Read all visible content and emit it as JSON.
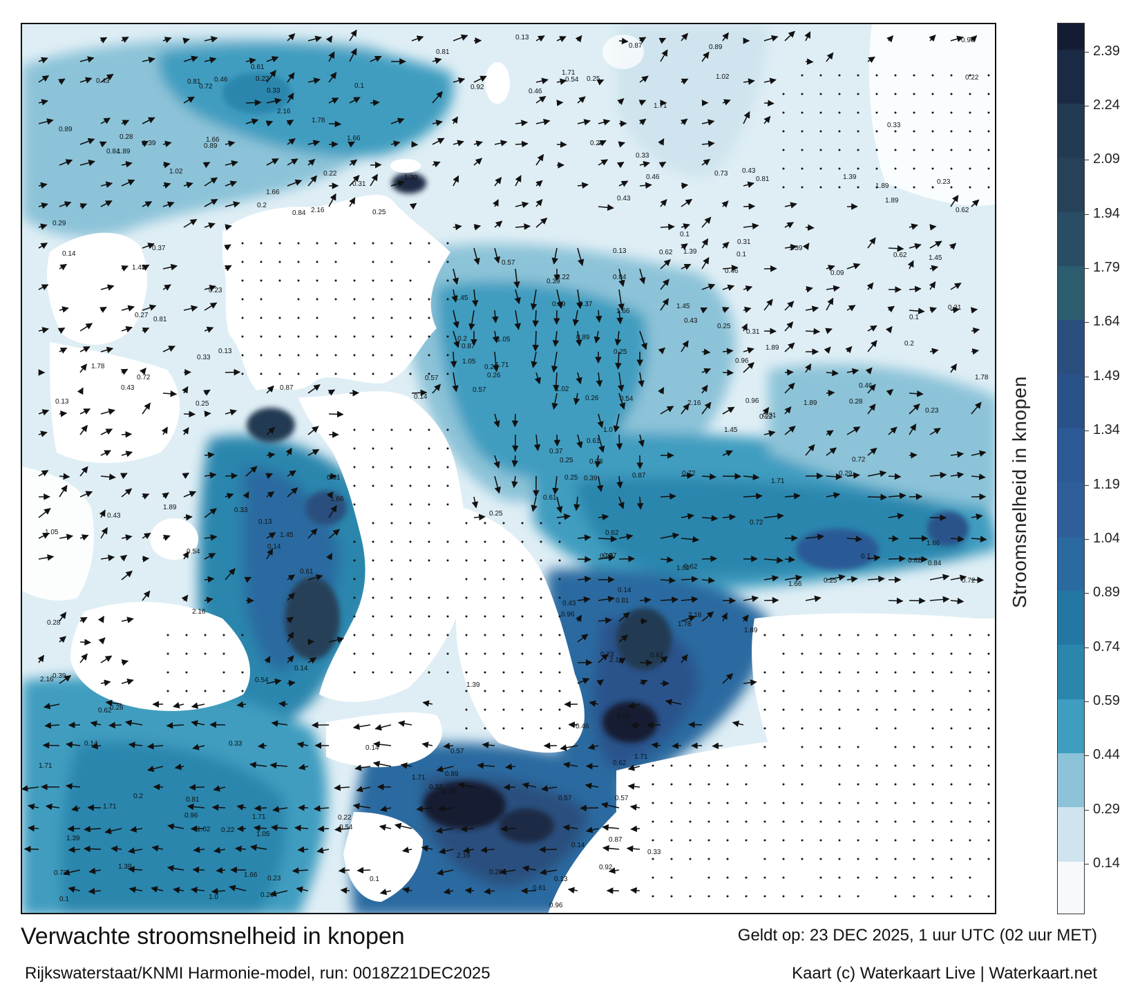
{
  "title": "Verwachte stroomsnelheid in knopen",
  "model_line": "Rijkswaterstaat/KNMI Harmonie-model, run: 0018Z21DEC2025",
  "valid_line": "Geldt op: 23 DEC 2025, 1 uur UTC (02 uur MET)",
  "credit_line": "Kaart (c) Waterkaart Live | Waterkaart.net",
  "legend": {
    "label": "Stroomsnelheid in knopen",
    "ticks": [
      "2.39",
      "2.24",
      "2.09",
      "1.94",
      "1.79",
      "1.64",
      "1.49",
      "1.34",
      "1.19",
      "1.04",
      "0.89",
      "0.74",
      "0.59",
      "0.44",
      "0.29",
      "0.14"
    ],
    "colors": {
      "0.00": "#f7fafc",
      "0.15": "#cfe4ee",
      "0.30": "#8cc3d8",
      "0.45": "#3f9dc0",
      "0.60": "#2b86ad",
      "0.75": "#2277a3",
      "0.90": "#2a6aa0",
      "1.05": "#2f5f9a",
      "1.20": "#2c5a96",
      "1.35": "#29528b",
      "1.50": "#2a4f7e",
      "1.65": "#2c5d6e",
      "1.80": "#2a4d66",
      "1.95": "#264158",
      "2.10": "#223a52",
      "2.25": "#1b2a44",
      "2.40": "#141c33"
    }
  },
  "chart_data": {
    "type": "vector-field-map",
    "units": "knopen",
    "sample_labels": [
      {
        "v": "0.25"
      },
      {
        "v": "0.28"
      },
      {
        "v": "0.39"
      },
      {
        "v": "0.54"
      },
      {
        "v": "0.33"
      },
      {
        "v": "0.73"
      },
      {
        "v": "0.29"
      },
      {
        "v": "0.27"
      },
      {
        "v": "0.26"
      },
      {
        "v": "0.22"
      },
      {
        "v": "0.09"
      },
      {
        "v": "0.14"
      },
      {
        "v": "0.13"
      },
      {
        "v": "0.23"
      },
      {
        "v": "0.62"
      },
      {
        "v": "0.92"
      },
      {
        "v": "0.81"
      },
      {
        "v": "1.0"
      },
      {
        "v": "0.72"
      },
      {
        "v": "0.61"
      },
      {
        "v": "0.84"
      },
      {
        "v": "0.89"
      },
      {
        "v": "1.89"
      },
      {
        "v": "1.71"
      },
      {
        "v": "1.39"
      },
      {
        "v": "2.16"
      },
      {
        "v": "1.78"
      },
      {
        "v": "1.66"
      },
      {
        "v": "1.45"
      },
      {
        "v": "1.05"
      },
      {
        "v": "1.02"
      },
      {
        "v": "0.96"
      },
      {
        "v": "0.87"
      },
      {
        "v": "0.57"
      },
      {
        "v": "0.46"
      },
      {
        "v": "0.43"
      },
      {
        "v": "0.37"
      },
      {
        "v": "0.31"
      },
      {
        "v": "0.2"
      },
      {
        "v": "0.1"
      }
    ]
  }
}
